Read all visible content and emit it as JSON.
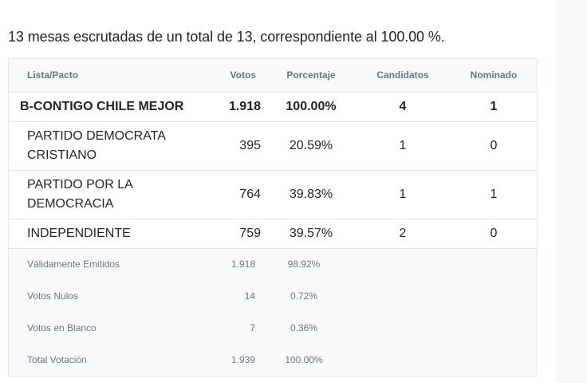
{
  "summary": "13 mesas escrutadas de un total de 13, correspondiente al 100.00 %.",
  "headers": {
    "lista": "Lista/Pacto",
    "votos": "Votos",
    "porcentaje": "Porcentaje",
    "candidatos": "Candidatos",
    "nominado": "Nominado"
  },
  "pact_total": {
    "name": "B-CONTIGO CHILE MEJOR",
    "votos": "1.918",
    "porcentaje": "100.00%",
    "candidatos": "4",
    "nominado": "1"
  },
  "parties": [
    {
      "name": "PARTIDO DEMOCRATA CRISTIANO",
      "votos": "395",
      "porcentaje": "20.59%",
      "candidatos": "1",
      "nominado": "0"
    },
    {
      "name": "PARTIDO POR LA DEMOCRACIA",
      "votos": "764",
      "porcentaje": "39.83%",
      "candidatos": "1",
      "nominado": "1"
    },
    {
      "name": "INDEPENDIENTE",
      "votos": "759",
      "porcentaje": "39.57%",
      "candidatos": "2",
      "nominado": "0"
    }
  ],
  "stats": [
    {
      "label": "Válidamente Emitidos",
      "votos": "1.918",
      "porcentaje": "98.92%"
    },
    {
      "label": "Votos Nulos",
      "votos": "14",
      "porcentaje": "0.72%"
    },
    {
      "label": "Votos en Blanco",
      "votos": "7",
      "porcentaje": "0.36%"
    },
    {
      "label": "Total Votación",
      "votos": "1.939",
      "porcentaje": "100.00%"
    }
  ]
}
